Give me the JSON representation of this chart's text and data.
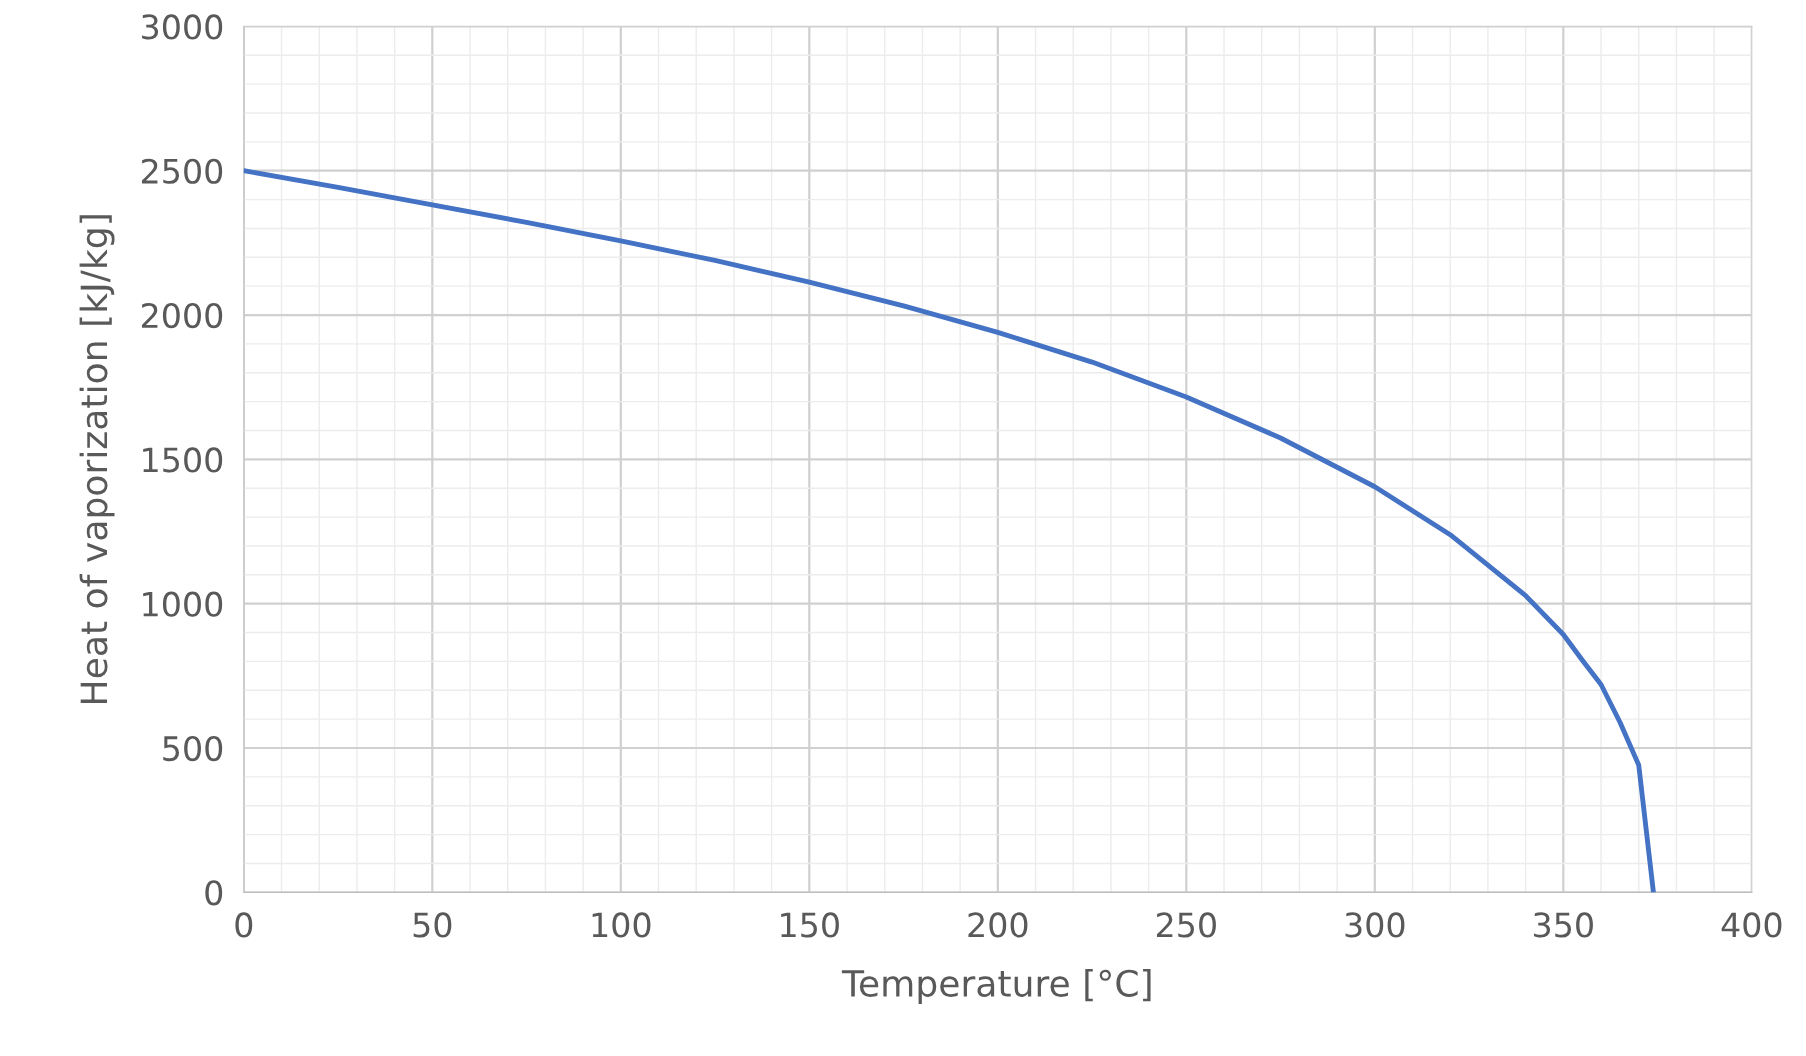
{
  "chart_data": {
    "type": "line",
    "xlabel": "Temperature [°C]",
    "ylabel": "Heat of vaporization [kJ/kg]",
    "series": [
      {
        "color": "#4472c4",
        "x": [
          0.01,
          25,
          50,
          75,
          100,
          125,
          150,
          175,
          200,
          225,
          250,
          275,
          300,
          320,
          340,
          350,
          355,
          360,
          365,
          370,
          373.9
        ],
        "values": [
          2500,
          2442,
          2382,
          2321,
          2257,
          2189,
          2114,
          2032,
          1940,
          1837,
          1716,
          1574,
          1405,
          1239,
          1028,
          893,
          805,
          720,
          590,
          441,
          0
        ]
      }
    ],
    "xlim": [
      0,
      400
    ],
    "xticks": [
      0,
      50,
      100,
      150,
      200,
      250,
      300,
      350,
      400
    ],
    "ylim": [
      0,
      3000
    ],
    "yticks": [
      0,
      500,
      1000,
      1500,
      2000,
      2500,
      3000
    ],
    "grid": true,
    "marker": "none",
    "line_style": "solid"
  }
}
